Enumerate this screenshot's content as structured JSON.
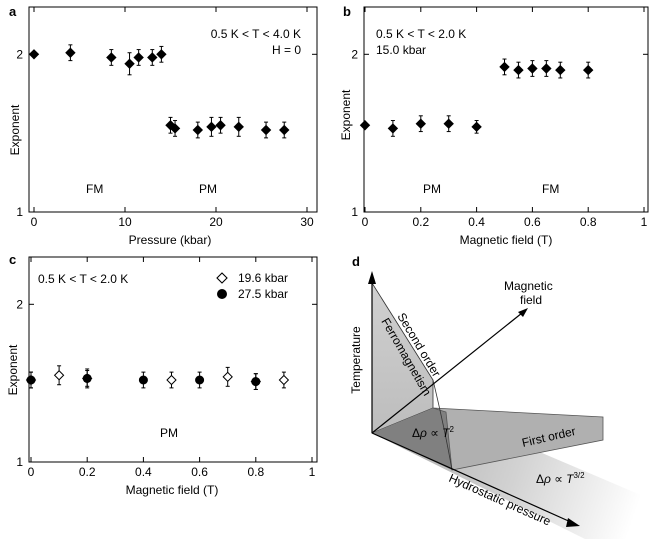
{
  "panels": {
    "a": {
      "letter": "a",
      "temp_range": "0.5 K < T < 4.0 K",
      "field_label": "H = 0",
      "ylabel": "Exponent",
      "xlabel": "Pressure (kbar)",
      "region_left": "FM",
      "region_right": "PM"
    },
    "b": {
      "letter": "b",
      "temp_range": "0.5 K < T < 2.0 K",
      "pressure_label": "15.0 kbar",
      "ylabel": "Exponent",
      "xlabel": "Magnetic field (T)",
      "region_left": "PM",
      "region_right": "FM"
    },
    "c": {
      "letter": "c",
      "temp_range": "0.5 K < T < 2.0 K",
      "ylabel": "Exponent",
      "xlabel": "Magnetic field (T)",
      "region": "PM",
      "legend": [
        "19.6 kbar",
        "27.5 kbar"
      ]
    },
    "d": {
      "letter": "d",
      "temperature": "Temperature",
      "magnetic_field": [
        "Magnetic",
        "field"
      ],
      "hydrostatic_pressure": "Hydrostatic pressure",
      "second_order": "Second order",
      "ferromagnetism": "Ferromagnetism",
      "first_order": "First order",
      "law_fm": "Δρ ∝ T²",
      "law_pm": "Δρ ∝ T^3/2"
    }
  },
  "chart_data": [
    {
      "panel": "a",
      "type": "scatter",
      "xlabel": "Pressure (kbar)",
      "ylabel": "Exponent",
      "xlim": [
        0,
        30
      ],
      "ylim": [
        1,
        2.3
      ],
      "xticks": [
        0,
        10,
        20,
        30
      ],
      "yticks": [
        1,
        2
      ],
      "series": [
        {
          "marker": "filled-diamond",
          "x": [
            0,
            4,
            8.5,
            10.5,
            11.5,
            13,
            14,
            15,
            15.5,
            18,
            19.5,
            20.5,
            22.5,
            25.5,
            27.5
          ],
          "y": [
            2.0,
            2.01,
            1.98,
            1.94,
            1.98,
            1.98,
            2.0,
            1.55,
            1.53,
            1.52,
            1.54,
            1.55,
            1.54,
            1.52,
            1.52
          ],
          "err": [
            0,
            0.05,
            0.05,
            0.07,
            0.05,
            0.05,
            0.05,
            0.05,
            0.05,
            0.05,
            0.06,
            0.05,
            0.06,
            0.05,
            0.05
          ]
        }
      ]
    },
    {
      "panel": "b",
      "type": "scatter",
      "xlabel": "Magnetic field (T)",
      "ylabel": "Exponent",
      "xlim": [
        0,
        1
      ],
      "ylim": [
        1,
        2.3
      ],
      "xticks": [
        0,
        0.2,
        0.4,
        0.6,
        0.8,
        1
      ],
      "yticks": [
        1,
        2
      ],
      "series": [
        {
          "marker": "filled-diamond",
          "x": [
            0,
            0.1,
            0.2,
            0.3,
            0.4,
            0.5,
            0.55,
            0.6,
            0.65,
            0.7,
            0.8
          ],
          "y": [
            1.55,
            1.53,
            1.56,
            1.56,
            1.54,
            1.92,
            1.9,
            1.91,
            1.91,
            1.9,
            1.9
          ],
          "err": [
            0,
            0.05,
            0.05,
            0.05,
            0.04,
            0.05,
            0.05,
            0.05,
            0.05,
            0.05,
            0.05
          ]
        }
      ]
    },
    {
      "panel": "c",
      "type": "scatter",
      "xlabel": "Magnetic field (T)",
      "ylabel": "Exponent",
      "xlim": [
        0,
        1
      ],
      "ylim": [
        1,
        2.3
      ],
      "xticks": [
        0,
        0.2,
        0.4,
        0.6,
        0.8,
        1
      ],
      "yticks": [
        1,
        2
      ],
      "series": [
        {
          "name": "19.6 kbar",
          "marker": "open-diamond",
          "x": [
            0,
            0.1,
            0.2,
            0.5,
            0.7,
            0.8,
            0.9
          ],
          "y": [
            1.52,
            1.55,
            1.53,
            1.52,
            1.54,
            1.51,
            1.52
          ],
          "err": [
            0.05,
            0.06,
            0.05,
            0.05,
            0.06,
            0.05,
            0.05
          ]
        },
        {
          "name": "27.5 kbar",
          "marker": "filled-circle",
          "x": [
            0,
            0.2,
            0.4,
            0.6,
            0.8
          ],
          "y": [
            1.52,
            1.53,
            1.52,
            1.52,
            1.51
          ],
          "err": [
            0.05,
            0.06,
            0.05,
            0.05,
            0.05
          ]
        }
      ]
    }
  ]
}
